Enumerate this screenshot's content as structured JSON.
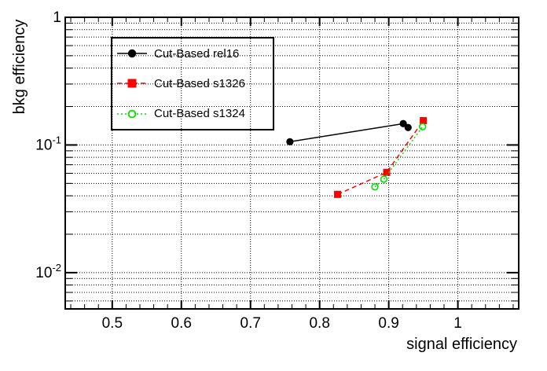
{
  "axes": {
    "x_label": "signal efficiency",
    "y_label": "bkg efficiency",
    "x_ticks": [
      {
        "v": 0.5,
        "label": "0.5"
      },
      {
        "v": 0.6,
        "label": "0.6"
      },
      {
        "v": 0.7,
        "label": "0.7"
      },
      {
        "v": 0.8,
        "label": "0.8"
      },
      {
        "v": 0.9,
        "label": "0.9"
      },
      {
        "v": 1.0,
        "label": "1"
      }
    ],
    "y_ticks": [
      {
        "v": 1,
        "base": "1",
        "exp": ""
      },
      {
        "v": 0.1,
        "base": "10",
        "exp": "-1"
      },
      {
        "v": 0.01,
        "base": "10",
        "exp": "-2"
      }
    ],
    "x_minor_step": 0.02
  },
  "legend": {
    "items": [
      {
        "label": "Cut-Based rel16",
        "color": "#000000",
        "marker": "filled-circle",
        "line_style": "solid"
      },
      {
        "label": "Cut-Based s1326",
        "color": "#ff0000",
        "marker": "filled-square",
        "line_style": "dashed"
      },
      {
        "label": "Cut-Based s1324",
        "color": "#00e000",
        "marker": "open-circle",
        "line_style": "dotted"
      }
    ]
  },
  "chart_data": {
    "type": "line",
    "title": "",
    "xlabel": "signal efficiency",
    "ylabel": "bkg efficiency",
    "xlim": [
      0.432,
      1.088
    ],
    "ylim": [
      0.0052,
      1.0
    ],
    "y_scale": "log",
    "grid": "dotted",
    "legend_position": "top-left",
    "series": [
      {
        "name": "Cut-Based rel16",
        "color": "#000000",
        "marker": "filled-circle",
        "line_style": "solid",
        "points": [
          [
            0.757,
            0.106
          ],
          [
            0.921,
            0.147
          ],
          [
            0.928,
            0.137
          ]
        ]
      },
      {
        "name": "Cut-Based s1326",
        "color": "#ff0000",
        "marker": "filled-square",
        "line_style": "dashed",
        "points": [
          [
            0.826,
            0.041
          ],
          [
            0.897,
            0.061
          ],
          [
            0.95,
            0.155
          ]
        ]
      },
      {
        "name": "Cut-Based s1324",
        "color": "#00e000",
        "marker": "open-circle",
        "line_style": "dotted",
        "points": [
          [
            0.88,
            0.047
          ],
          [
            0.893,
            0.054
          ],
          [
            0.949,
            0.139
          ]
        ]
      }
    ]
  }
}
